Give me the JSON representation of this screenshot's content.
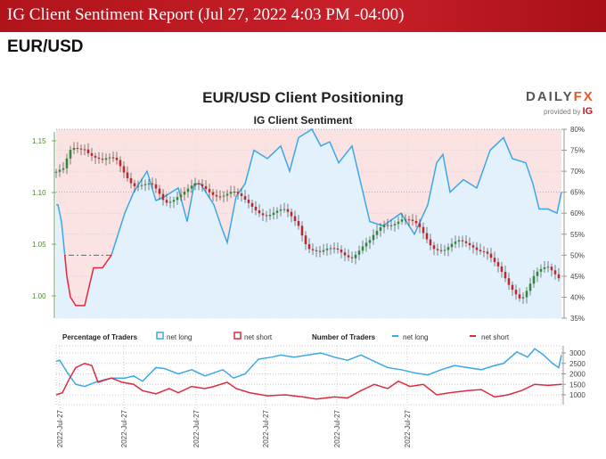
{
  "header": {
    "title": "IG Client Sentiment Report (Jul 27, 2022 4:03 PM -04:00)"
  },
  "pair": "EUR/USD",
  "logo": {
    "brand_a": "DAILY",
    "brand_b": "FX",
    "provided_by": "provided by",
    "ig": "IG"
  },
  "colors": {
    "net_long": "#3aa8e8",
    "net_short": "#e0283c",
    "candle_up": "#2e8b3a",
    "candle_down": "#c0282f"
  },
  "chart_data": [
    {
      "type": "line",
      "title": "EUR/USD Client Positioning",
      "subtitle": "IG Client Sentiment",
      "price_axis": {
        "ticks": [
          "1.15",
          "1.10",
          "1.05",
          "1.00"
        ],
        "values": [
          1.15,
          1.1,
          1.05,
          1.0
        ],
        "ylim": [
          0.985,
          1.162
        ]
      },
      "pct_axis": {
        "ticks": [
          "80%",
          "75%",
          "70%",
          "65%",
          "60%",
          "55%",
          "50%",
          "45%",
          "40%",
          "35%"
        ],
        "ylim": [
          35,
          80
        ]
      },
      "net_long_pct": [
        [
          0,
          62
        ],
        [
          2,
          62
        ],
        [
          6,
          58
        ],
        [
          12,
          45
        ],
        [
          16,
          40
        ],
        [
          22,
          38
        ],
        [
          32,
          38
        ],
        [
          42,
          47
        ],
        [
          52,
          47
        ],
        [
          62,
          50
        ],
        [
          77,
          60
        ],
        [
          87,
          65
        ],
        [
          102,
          70
        ],
        [
          112,
          63
        ],
        [
          122,
          64
        ],
        [
          137,
          66
        ],
        [
          147,
          58
        ],
        [
          155,
          67
        ],
        [
          162,
          67
        ],
        [
          177,
          62
        ],
        [
          185,
          57
        ],
        [
          192,
          53
        ],
        [
          202,
          64
        ],
        [
          212,
          67
        ],
        [
          222,
          75
        ],
        [
          237,
          73
        ],
        [
          252,
          76
        ],
        [
          262,
          70
        ],
        [
          272,
          78
        ],
        [
          287,
          80
        ],
        [
          297,
          76
        ],
        [
          307,
          77
        ],
        [
          317,
          72
        ],
        [
          332,
          76
        ],
        [
          342,
          67
        ],
        [
          352,
          58
        ],
        [
          367,
          57
        ],
        [
          387,
          60
        ],
        [
          402,
          55
        ],
        [
          417,
          62
        ],
        [
          427,
          72
        ],
        [
          434,
          74
        ],
        [
          442,
          65
        ],
        [
          457,
          68
        ],
        [
          472,
          66
        ],
        [
          487,
          75
        ],
        [
          502,
          78
        ],
        [
          512,
          73
        ],
        [
          527,
          72
        ],
        [
          535,
          67
        ],
        [
          542,
          61
        ],
        [
          552,
          61
        ],
        [
          562,
          60
        ],
        [
          567,
          65
        ]
      ],
      "price": [
        [
          0,
          1.12
        ],
        [
          8,
          1.12
        ],
        [
          17,
          1.14
        ],
        [
          32,
          1.145
        ],
        [
          52,
          1.13
        ],
        [
          67,
          1.13
        ],
        [
          87,
          1.11
        ],
        [
          107,
          1.105
        ],
        [
          122,
          1.09
        ],
        [
          137,
          1.1
        ],
        [
          157,
          1.105
        ],
        [
          177,
          1.1
        ],
        [
          197,
          1.1
        ],
        [
          212,
          1.09
        ],
        [
          237,
          1.08
        ],
        [
          257,
          1.08
        ],
        [
          272,
          1.07
        ],
        [
          282,
          1.05
        ],
        [
          297,
          1.04
        ],
        [
          317,
          1.045
        ],
        [
          332,
          1.04
        ],
        [
          352,
          1.05
        ],
        [
          367,
          1.07
        ],
        [
          387,
          1.075
        ],
        [
          407,
          1.065
        ],
        [
          422,
          1.05
        ],
        [
          437,
          1.045
        ],
        [
          452,
          1.05
        ],
        [
          467,
          1.05
        ],
        [
          482,
          1.045
        ],
        [
          492,
          1.03
        ],
        [
          507,
          1.01
        ],
        [
          522,
          1.0
        ],
        [
          537,
          1.02
        ],
        [
          552,
          1.025
        ],
        [
          567,
          1.018
        ]
      ]
    },
    {
      "type": "line",
      "title": "Number of Traders",
      "legend": {
        "pct_label": "Percentage of Traders",
        "num_label": "Number of Traders",
        "net_long": "net long",
        "net_short": "net short"
      },
      "y_ticks": [
        "3000",
        "2500",
        "2000",
        "1500",
        "1000"
      ],
      "x_ticks": [
        "2022-Jul-27",
        "2022-Jul-27",
        "2022-Jul-27",
        "2022-Jul-27",
        "2022-Jul-27",
        "2022-Jul-27"
      ],
      "net_long": [
        [
          0,
          2600
        ],
        [
          4,
          2650
        ],
        [
          12,
          2100
        ],
        [
          22,
          1500
        ],
        [
          32,
          1400
        ],
        [
          44,
          1600
        ],
        [
          52,
          1700
        ],
        [
          62,
          1800
        ],
        [
          77,
          1800
        ],
        [
          87,
          1900
        ],
        [
          97,
          1650
        ],
        [
          112,
          2300
        ],
        [
          122,
          2250
        ],
        [
          137,
          2000
        ],
        [
          152,
          2200
        ],
        [
          167,
          1900
        ],
        [
          187,
          2200
        ],
        [
          199,
          1800
        ],
        [
          212,
          2000
        ],
        [
          227,
          2700
        ],
        [
          242,
          2800
        ],
        [
          252,
          2900
        ],
        [
          267,
          2800
        ],
        [
          282,
          2900
        ],
        [
          297,
          3000
        ],
        [
          312,
          2800
        ],
        [
          327,
          2650
        ],
        [
          342,
          2900
        ],
        [
          357,
          2600
        ],
        [
          372,
          2300
        ],
        [
          387,
          2200
        ],
        [
          402,
          2050
        ],
        [
          417,
          1950
        ],
        [
          432,
          2200
        ],
        [
          447,
          2400
        ],
        [
          462,
          2300
        ],
        [
          477,
          2200
        ],
        [
          492,
          2400
        ],
        [
          502,
          2500
        ],
        [
          517,
          3050
        ],
        [
          529,
          2800
        ],
        [
          537,
          3200
        ],
        [
          547,
          2900
        ],
        [
          557,
          2500
        ],
        [
          564,
          2300
        ],
        [
          567,
          2900
        ]
      ],
      "net_short": [
        [
          0,
          1000
        ],
        [
          7,
          1100
        ],
        [
          14,
          1700
        ],
        [
          22,
          2300
        ],
        [
          32,
          2500
        ],
        [
          40,
          2400
        ],
        [
          47,
          1600
        ],
        [
          62,
          1800
        ],
        [
          74,
          1600
        ],
        [
          87,
          1500
        ],
        [
          97,
          1200
        ],
        [
          112,
          1050
        ],
        [
          127,
          1300
        ],
        [
          137,
          1100
        ],
        [
          152,
          1400
        ],
        [
          167,
          1300
        ],
        [
          177,
          1400
        ],
        [
          192,
          1600
        ],
        [
          202,
          1300
        ],
        [
          217,
          1100
        ],
        [
          237,
          950
        ],
        [
          257,
          1000
        ],
        [
          277,
          900
        ],
        [
          292,
          800
        ],
        [
          312,
          900
        ],
        [
          327,
          850
        ],
        [
          342,
          1200
        ],
        [
          357,
          1500
        ],
        [
          372,
          1300
        ],
        [
          384,
          1650
        ],
        [
          397,
          1400
        ],
        [
          412,
          1500
        ],
        [
          427,
          1000
        ],
        [
          442,
          1100
        ],
        [
          462,
          1200
        ],
        [
          477,
          1250
        ],
        [
          492,
          900
        ],
        [
          507,
          1000
        ],
        [
          522,
          1200
        ],
        [
          537,
          1500
        ],
        [
          552,
          1450
        ],
        [
          567,
          1500
        ]
      ]
    }
  ]
}
